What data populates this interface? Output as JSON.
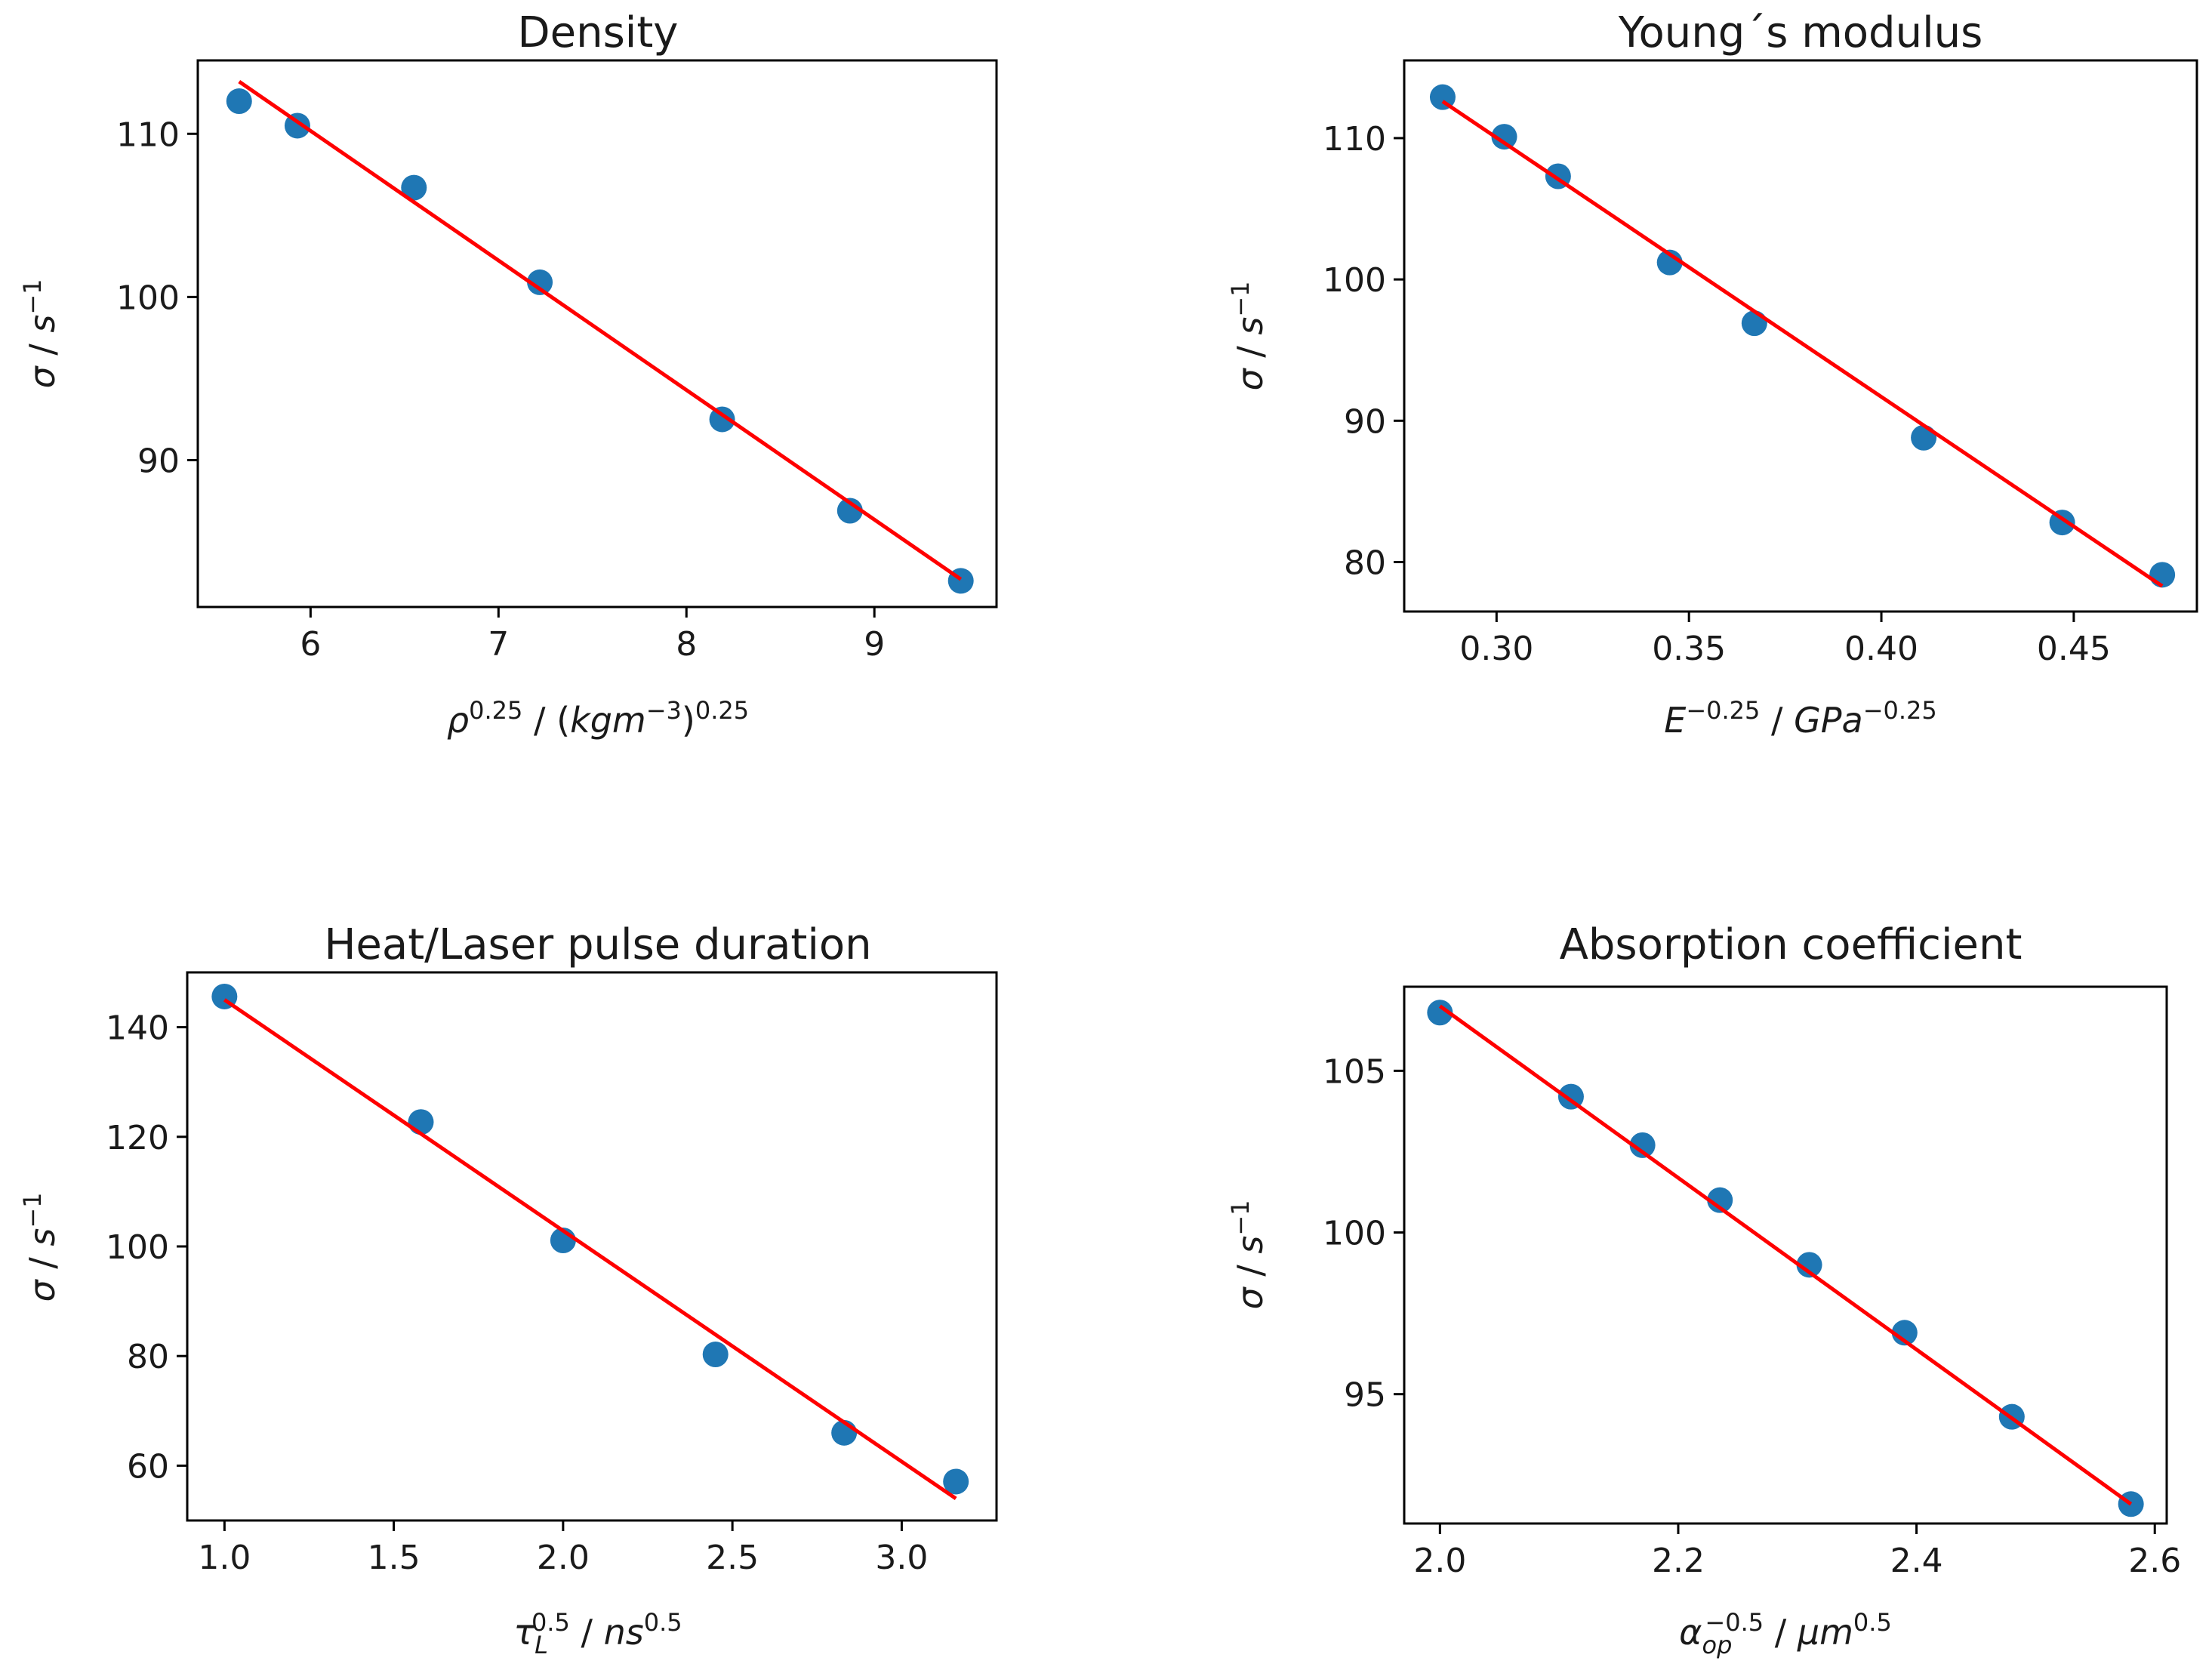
{
  "chart_data": [
    {
      "type": "scatter",
      "title": "Density",
      "xlabel": "ρ^0.25 / (kgm^−3)^0.25",
      "ylabel": "σ / s^−1",
      "xlim": [
        5.4,
        9.65
      ],
      "ylim": [
        81,
        114.5
      ],
      "xticks": [
        "6",
        "7",
        "8",
        "9"
      ],
      "xtick_values": [
        6,
        7,
        8,
        9
      ],
      "yticks": [
        "90",
        "100",
        "110"
      ],
      "ytick_values": [
        90,
        100,
        110
      ],
      "x": [
        5.62,
        5.93,
        6.55,
        7.22,
        8.19,
        8.87,
        9.46
      ],
      "y": [
        112.0,
        110.5,
        106.7,
        100.9,
        92.5,
        86.9,
        82.6
      ],
      "fit": {
        "x": [
          5.62,
          9.46
        ],
        "y": [
          113.2,
          82.7
        ]
      }
    },
    {
      "type": "scatter",
      "title": "Young´s modulus",
      "xlabel": "E^−0.25 / GPa^−0.25",
      "ylabel": "σ / s^−1",
      "xlim": [
        0.276,
        0.482
      ],
      "ylim": [
        76.5,
        115.5
      ],
      "xticks": [
        "0.30",
        "0.35",
        "0.40",
        "0.45"
      ],
      "xtick_values": [
        0.3,
        0.35,
        0.4,
        0.45
      ],
      "yticks": [
        "80",
        "90",
        "100",
        "110"
      ],
      "ytick_values": [
        80,
        90,
        100,
        110
      ],
      "x": [
        0.286,
        0.302,
        0.316,
        0.345,
        0.367,
        0.411,
        0.447,
        0.473
      ],
      "y": [
        112.9,
        110.1,
        107.3,
        101.2,
        96.9,
        88.8,
        82.8,
        79.1
      ],
      "fit": {
        "x": [
          0.286,
          0.473
        ],
        "y": [
          112.6,
          78.3
        ]
      }
    },
    {
      "type": "scatter",
      "title": "Heat/Laser pulse duration",
      "xlabel": "τ_L^0.5 / ns^0.5",
      "ylabel": "σ / s^−1",
      "xlim": [
        0.89,
        3.28
      ],
      "ylim": [
        50,
        150
      ],
      "xticks": [
        "1.0",
        "1.5",
        "2.0",
        "2.5",
        "3.0"
      ],
      "xtick_values": [
        1.0,
        1.5,
        2.0,
        2.5,
        3.0
      ],
      "yticks": [
        "60",
        "80",
        "100",
        "120",
        "140"
      ],
      "ytick_values": [
        60,
        80,
        100,
        120,
        140
      ],
      "x": [
        1.0,
        1.58,
        2.0,
        2.45,
        2.83,
        3.16
      ],
      "y": [
        145.6,
        122.7,
        101.1,
        80.3,
        66.0,
        57.1
      ],
      "fit": {
        "x": [
          1.0,
          3.16
        ],
        "y": [
          145.0,
          54.0
        ]
      }
    },
    {
      "type": "scatter",
      "title": "Absorption coefficient",
      "xlabel": "α_op^−0.5 / μm^0.5",
      "ylabel": "σ / s^−1",
      "xlim": [
        1.97,
        2.61
      ],
      "ylim": [
        91.0,
        107.6
      ],
      "xticks": [
        "2.0",
        "2.2",
        "2.4",
        "2.6"
      ],
      "xtick_values": [
        2.0,
        2.2,
        2.4,
        2.6
      ],
      "yticks": [
        "95",
        "100",
        "105"
      ],
      "ytick_values": [
        95,
        100,
        105
      ],
      "x": [
        2.0,
        2.11,
        2.17,
        2.235,
        2.31,
        2.39,
        2.48,
        2.58
      ],
      "y": [
        106.8,
        104.2,
        102.7,
        101.0,
        99.0,
        96.9,
        94.3,
        91.6
      ],
      "fit": {
        "x": [
          2.0,
          2.58
        ],
        "y": [
          107.0,
          91.6
        ]
      }
    }
  ]
}
